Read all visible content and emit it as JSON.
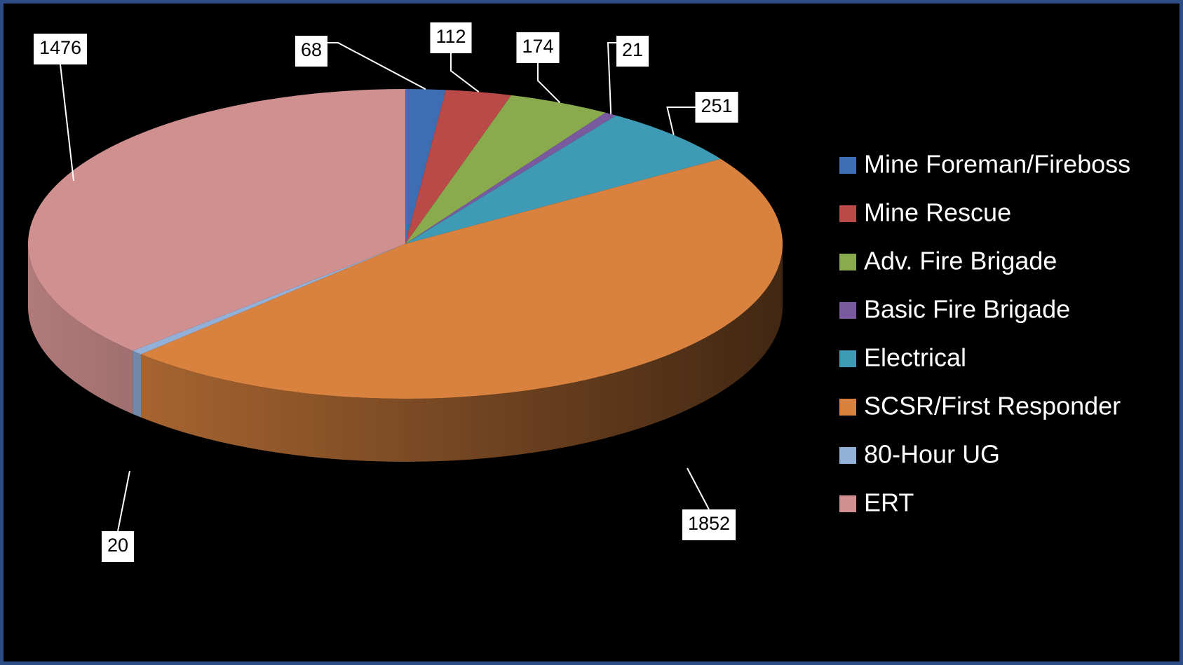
{
  "chart_data": {
    "type": "pie3d",
    "categories": [
      "Mine Foreman/Fireboss",
      "Mine Rescue",
      "Adv. Fire Brigade",
      "Basic Fire Brigade",
      "Electrical",
      "SCSR/First Responder",
      "80-Hour UG",
      "ERT"
    ],
    "values": [
      68,
      112,
      174,
      21,
      251,
      1852,
      20,
      1476
    ],
    "colors": [
      "#3d6eb4",
      "#b94a48",
      "#8aaa4e",
      "#7a5a9e",
      "#3f9bb5",
      "#d9823f",
      "#93b0d9",
      "#d09090"
    ],
    "legend": "right"
  }
}
